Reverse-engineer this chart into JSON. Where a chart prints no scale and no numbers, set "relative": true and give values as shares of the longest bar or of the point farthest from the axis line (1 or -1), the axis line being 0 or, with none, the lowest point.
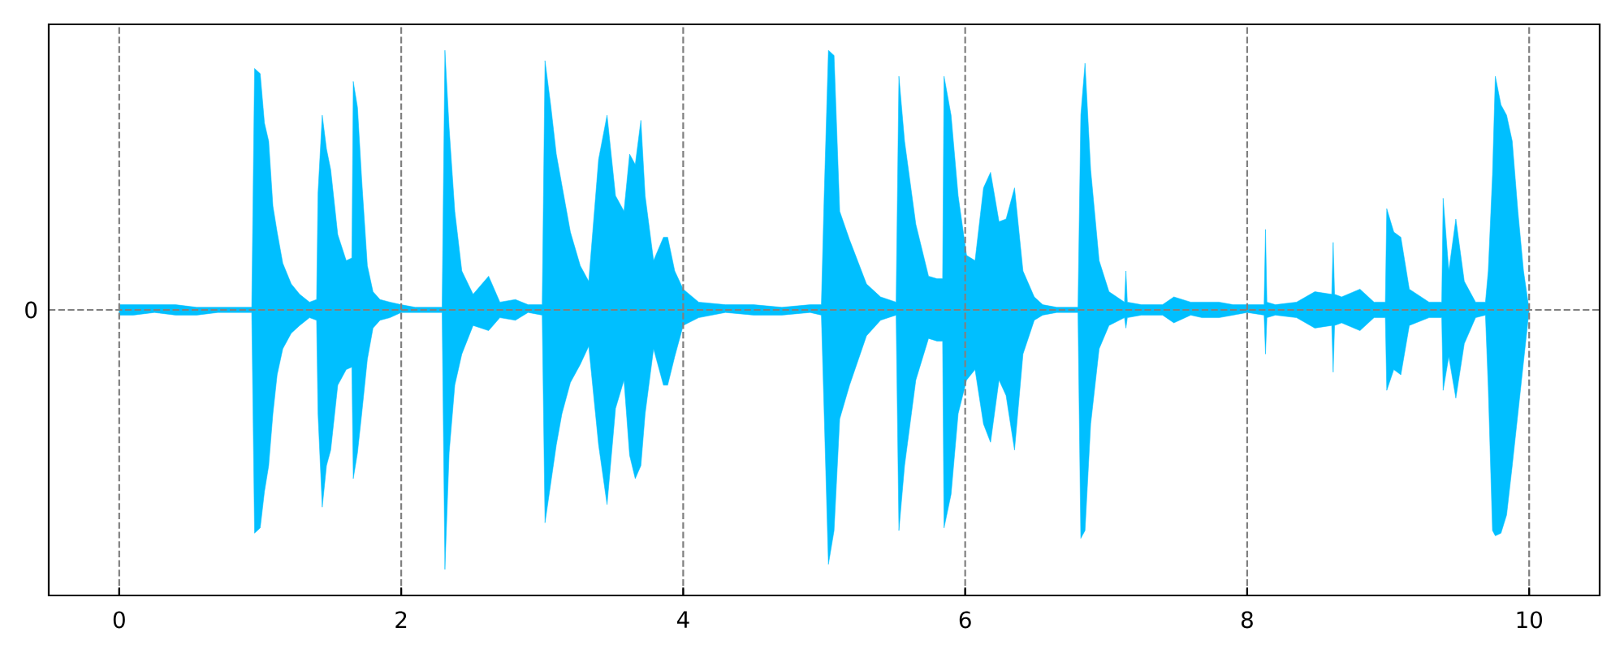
{
  "chart_data": {
    "type": "area",
    "relative": true,
    "x": [
      0.0,
      0.1,
      0.25,
      0.4,
      0.55,
      0.7,
      0.85,
      0.94,
      0.96,
      1.0,
      1.03,
      1.06,
      1.09,
      1.12,
      1.16,
      1.22,
      1.28,
      1.35,
      1.4,
      1.41,
      1.44,
      1.47,
      1.5,
      1.55,
      1.61,
      1.65,
      1.66,
      1.69,
      1.72,
      1.76,
      1.8,
      1.85,
      1.92,
      2.0,
      2.1,
      2.2,
      2.29,
      2.31,
      2.34,
      2.38,
      2.43,
      2.51,
      2.62,
      2.7,
      2.81,
      2.9,
      3.0,
      3.02,
      3.06,
      3.1,
      3.14,
      3.2,
      3.27,
      3.33,
      3.4,
      3.46,
      3.52,
      3.58,
      3.62,
      3.66,
      3.7,
      3.73,
      3.79,
      3.86,
      3.89,
      3.94,
      4.0,
      4.11,
      4.3,
      4.5,
      4.7,
      4.9,
      4.98,
      5.0,
      5.03,
      5.07,
      5.11,
      5.18,
      5.3,
      5.4,
      5.51,
      5.53,
      5.57,
      5.65,
      5.74,
      5.8,
      5.84,
      5.85,
      5.9,
      5.95,
      6.01,
      6.07,
      6.13,
      6.18,
      6.24,
      6.29,
      6.35,
      6.41,
      6.49,
      6.55,
      6.65,
      6.8,
      6.82,
      6.85,
      6.89,
      6.95,
      7.02,
      7.13,
      7.14,
      7.15,
      7.25,
      7.4,
      7.48,
      7.6,
      7.68,
      7.8,
      7.9,
      8.0,
      8.12,
      8.13,
      8.14,
      8.2,
      8.35,
      8.48,
      8.6,
      8.61,
      8.62,
      8.67,
      8.8,
      8.9,
      8.98,
      8.99,
      9.04,
      9.09,
      9.15,
      9.29,
      9.38,
      9.39,
      9.43,
      9.48,
      9.54,
      9.62,
      9.69,
      9.71,
      9.74,
      9.76,
      9.8,
      9.84,
      9.88,
      9.92,
      9.96,
      10.0
    ],
    "series": [
      {
        "color": "#00bfff",
        "values": [
          0.02,
          0.02,
          0.02,
          0.02,
          0.01,
          0.01,
          0.01,
          0.01,
          0.93,
          0.91,
          0.72,
          0.65,
          0.4,
          0.3,
          0.18,
          0.1,
          0.06,
          0.03,
          0.04,
          0.45,
          0.75,
          0.62,
          0.54,
          0.29,
          0.19,
          0.2,
          0.88,
          0.78,
          0.5,
          0.17,
          0.07,
          0.04,
          0.03,
          0.02,
          0.01,
          0.01,
          0.01,
          1.0,
          0.7,
          0.38,
          0.15,
          0.06,
          0.13,
          0.03,
          0.04,
          0.02,
          0.02,
          0.96,
          0.79,
          0.6,
          0.48,
          0.3,
          0.17,
          0.11,
          0.58,
          0.75,
          0.44,
          0.38,
          0.6,
          0.56,
          0.73,
          0.44,
          0.19,
          0.28,
          0.28,
          0.15,
          0.08,
          0.03,
          0.02,
          0.02,
          0.01,
          0.02,
          0.02,
          0.44,
          1.0,
          0.98,
          0.38,
          0.27,
          0.1,
          0.05,
          0.03,
          0.9,
          0.65,
          0.33,
          0.13,
          0.12,
          0.12,
          0.9,
          0.75,
          0.44,
          0.21,
          0.19,
          0.47,
          0.53,
          0.34,
          0.35,
          0.47,
          0.15,
          0.05,
          0.02,
          0.01,
          0.01,
          0.75,
          0.95,
          0.54,
          0.19,
          0.07,
          0.03,
          0.15,
          0.03,
          0.02,
          0.02,
          0.05,
          0.03,
          0.03,
          0.03,
          0.02,
          0.02,
          0.02,
          0.31,
          0.03,
          0.02,
          0.03,
          0.07,
          0.06,
          0.26,
          0.06,
          0.05,
          0.08,
          0.03,
          0.03,
          0.39,
          0.3,
          0.28,
          0.08,
          0.03,
          0.03,
          0.43,
          0.15,
          0.35,
          0.11,
          0.03,
          0.03,
          0.15,
          0.52,
          0.9,
          0.79,
          0.75,
          0.65,
          0.38,
          0.15,
          0.0
        ]
      },
      {
        "color": "#00bfff",
        "values": [
          -0.02,
          -0.02,
          -0.01,
          -0.02,
          -0.02,
          -0.01,
          -0.01,
          -0.01,
          -0.86,
          -0.84,
          -0.7,
          -0.6,
          -0.4,
          -0.25,
          -0.15,
          -0.09,
          -0.06,
          -0.03,
          -0.04,
          -0.4,
          -0.76,
          -0.6,
          -0.54,
          -0.29,
          -0.23,
          -0.22,
          -0.65,
          -0.55,
          -0.4,
          -0.19,
          -0.07,
          -0.04,
          -0.03,
          -0.01,
          -0.01,
          -0.01,
          -0.01,
          -1.0,
          -0.55,
          -0.29,
          -0.17,
          -0.06,
          -0.08,
          -0.03,
          -0.04,
          -0.01,
          -0.02,
          -0.82,
          -0.67,
          -0.52,
          -0.4,
          -0.28,
          -0.21,
          -0.14,
          -0.52,
          -0.75,
          -0.38,
          -0.27,
          -0.56,
          -0.65,
          -0.6,
          -0.4,
          -0.15,
          -0.29,
          -0.29,
          -0.18,
          -0.06,
          -0.03,
          -0.01,
          -0.02,
          -0.02,
          -0.01,
          -0.02,
          -0.4,
          -0.98,
          -0.85,
          -0.42,
          -0.29,
          -0.1,
          -0.04,
          -0.02,
          -0.85,
          -0.6,
          -0.27,
          -0.11,
          -0.12,
          -0.12,
          -0.84,
          -0.71,
          -0.4,
          -0.27,
          -0.23,
          -0.44,
          -0.51,
          -0.27,
          -0.33,
          -0.54,
          -0.17,
          -0.04,
          -0.02,
          -0.01,
          -0.01,
          -0.88,
          -0.85,
          -0.44,
          -0.15,
          -0.06,
          -0.03,
          -0.07,
          -0.03,
          -0.02,
          -0.02,
          -0.05,
          -0.02,
          -0.03,
          -0.03,
          -0.02,
          -0.01,
          -0.02,
          -0.17,
          -0.03,
          -0.02,
          -0.03,
          -0.07,
          -0.06,
          -0.24,
          -0.06,
          -0.05,
          -0.08,
          -0.03,
          -0.03,
          -0.31,
          -0.23,
          -0.25,
          -0.06,
          -0.03,
          -0.03,
          -0.31,
          -0.18,
          -0.34,
          -0.13,
          -0.03,
          -0.02,
          -0.3,
          -0.85,
          -0.87,
          -0.86,
          -0.79,
          -0.6,
          -0.4,
          -0.2,
          0.0
        ]
      }
    ],
    "xlim": [
      -0.5,
      10.5
    ],
    "xticks": [
      0,
      2,
      4,
      6,
      8,
      10
    ],
    "grid": "x",
    "ref_lines": [
      {
        "axis": "y",
        "value": 0,
        "label": "0",
        "color": "#808080",
        "line_style": "dashed"
      }
    ]
  }
}
